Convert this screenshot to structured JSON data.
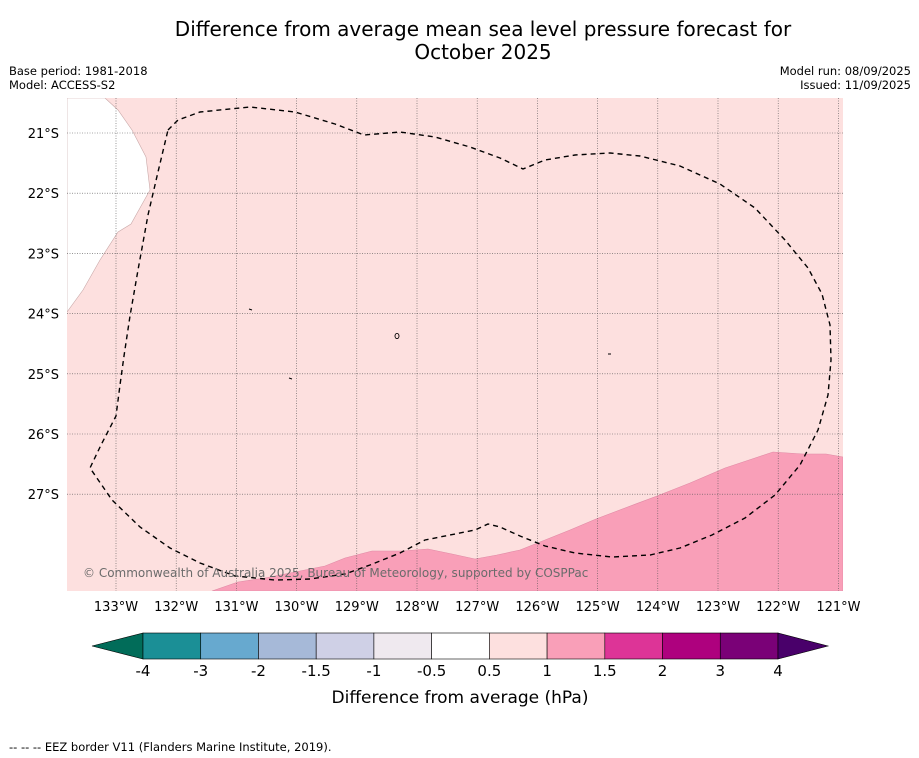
{
  "title_line1": "Difference from average mean sea level pressure forecast for",
  "title_line2": "October 2025",
  "base_period": "Base period: 1981-2018",
  "model": "Model: ACCESS-S2",
  "model_run": "Model run: 08/09/2025",
  "issued": "Issued: 11/09/2025",
  "copyright": "© Commonwealth of Australia 2025, Bureau of Meteorology, supported by COSPPac",
  "footnote": "--  --  -- EEZ border V11 (Flanders Marine Institute, 2019).",
  "lat_labels": [
    "21°S",
    "22°S",
    "23°S",
    "24°S",
    "25°S",
    "26°S",
    "27°S"
  ],
  "lon_labels": [
    "133°W",
    "132°W",
    "131°W",
    "130°W",
    "129°W",
    "128°W",
    "127°W",
    "126°W",
    "125°W",
    "124°W",
    "123°W",
    "122°W",
    "121°W"
  ],
  "colorbar": {
    "title": "Difference from average (hPa)",
    "tick_labels": [
      "-4",
      "-3",
      "-2",
      "-1.5",
      "-1",
      "-0.5",
      "0.5",
      "1",
      "1.5",
      "2",
      "3",
      "4"
    ],
    "colors": [
      "#1b8f96",
      "#67a9cf",
      "#a6b9d8",
      "#cfd0e6",
      "#efe9ef",
      "#ffffff",
      "#fde0df",
      "#f99fb8",
      "#dd3497",
      "#ae017e",
      "#7a0177"
    ],
    "under_color": "#016c59",
    "over_color": "#49006a"
  },
  "map_colors": {
    "background": "#fde0df",
    "high_region": "#f99fb8",
    "land": "#ffffff"
  }
}
